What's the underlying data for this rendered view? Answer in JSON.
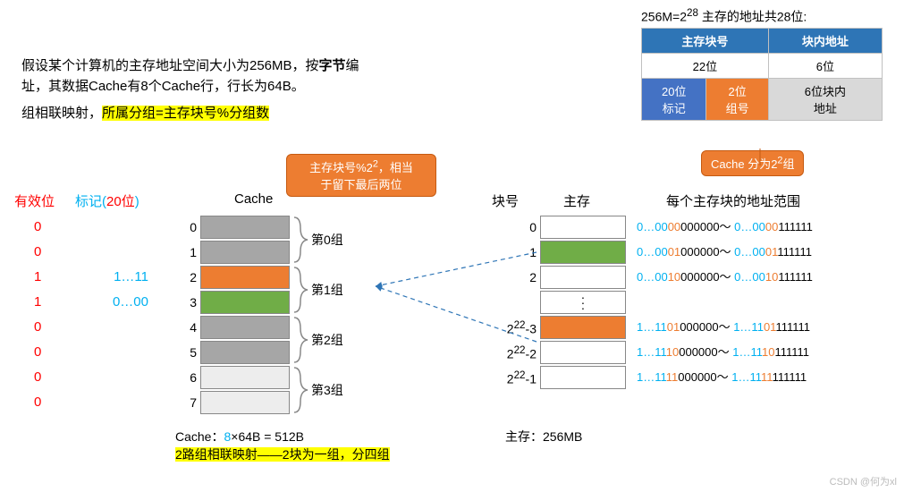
{
  "address_table": {
    "caption_prefix": "256M=2",
    "caption_sup": "28",
    "caption_suffix": "  主存的地址共28位:",
    "header_left": "主存块号",
    "header_right": "块内地址",
    "row1_left": "22位",
    "row1_right": "6位",
    "mark_label_top": "20位",
    "mark_label_bot": "标记",
    "group_label_top": "2位",
    "group_label_bot": "组号",
    "offset_label_top": "6位块内",
    "offset_label_bot": "地址",
    "cache_badge_prefix": "Cache 分为2",
    "cache_badge_sup": "2",
    "cache_badge_suffix": "组"
  },
  "problem": {
    "line1_a": "假设某个计算机的主存地址空间大小为256MB，按",
    "line1_bold": "字节",
    "line1_b": "编",
    "line2": "址，其数据Cache有8个Cache行，行长为64B。",
    "line3_a": "组相联映射，",
    "line3_hl": "所属分组=主存块号%分组数"
  },
  "note_orange": {
    "l1_a": "主存块号%2",
    "l1_sup": "2",
    "l1_b": "，相当",
    "l2": "于留下最后两位"
  },
  "headers": {
    "valid": "有效位",
    "mark_a": "标记(",
    "mark_r": "20位",
    "mark_b": ")",
    "cache": "Cache",
    "block": "块号",
    "mem": "主存",
    "range": "每个主存块的地址范围"
  },
  "valid_values": [
    "0",
    "0",
    "1",
    "1",
    "0",
    "0",
    "0",
    "0"
  ],
  "mark_values": [
    "",
    "",
    "1…11",
    "0…00",
    "",
    "",
    "",
    ""
  ],
  "cache": {
    "rows": [
      {
        "idx": "0",
        "cls": "cell-gray"
      },
      {
        "idx": "1",
        "cls": "cell-gray"
      },
      {
        "idx": "2",
        "cls": "cell-orange"
      },
      {
        "idx": "3",
        "cls": "cell-green"
      },
      {
        "idx": "4",
        "cls": "cell-gray"
      },
      {
        "idx": "5",
        "cls": "cell-gray"
      },
      {
        "idx": "6",
        "cls": "cell-light"
      },
      {
        "idx": "7",
        "cls": "cell-light"
      }
    ],
    "groups": [
      "第0组",
      "第1组",
      "第2组",
      "第3组"
    ]
  },
  "mem": {
    "rows": [
      {
        "idx": "0",
        "cls": ""
      },
      {
        "idx": "1",
        "cls": "green"
      },
      {
        "idx": "2",
        "cls": ""
      },
      {
        "idx": "",
        "cls": "dots"
      },
      {
        "idx": "2^22-3",
        "cls": "orange"
      },
      {
        "idx": "2^22-2",
        "cls": ""
      },
      {
        "idx": "2^22-1",
        "cls": ""
      }
    ]
  },
  "ranges": [
    {
      "p1": "0…00",
      "p2": "00",
      "p3": "000000",
      "q1": "0…00",
      "q2": "00",
      "q3": "111111"
    },
    {
      "p1": "0…00",
      "p2": "01",
      "p3": "000000",
      "q1": "0…00",
      "q2": "01",
      "q3": "111111"
    },
    {
      "p1": "0…00",
      "p2": "10",
      "p3": "000000",
      "q1": "0…00",
      "q2": "10",
      "q3": "111111"
    },
    {
      "p1": "1…11",
      "p2": "01",
      "p3": "000000",
      "q1": "1…11",
      "q2": "01",
      "q3": "111111"
    },
    {
      "p1": "1…11",
      "p2": "10",
      "p3": "000000",
      "q1": "1…11",
      "q2": "10",
      "q3": "111111"
    },
    {
      "p1": "1…11",
      "p2": "11",
      "p3": "000000",
      "q1": "1…11",
      "q2": "11",
      "q3": "111111"
    }
  ],
  "bottom": {
    "cache_size_a": "Cache：",
    "cache_size_b": "8",
    "cache_size_c": "×64B = 512B",
    "set_assoc": "2路组相联映射——2块为一组，分四组",
    "mem_size": "主存：256MB",
    "watermark": "CSDN @何为xl"
  }
}
